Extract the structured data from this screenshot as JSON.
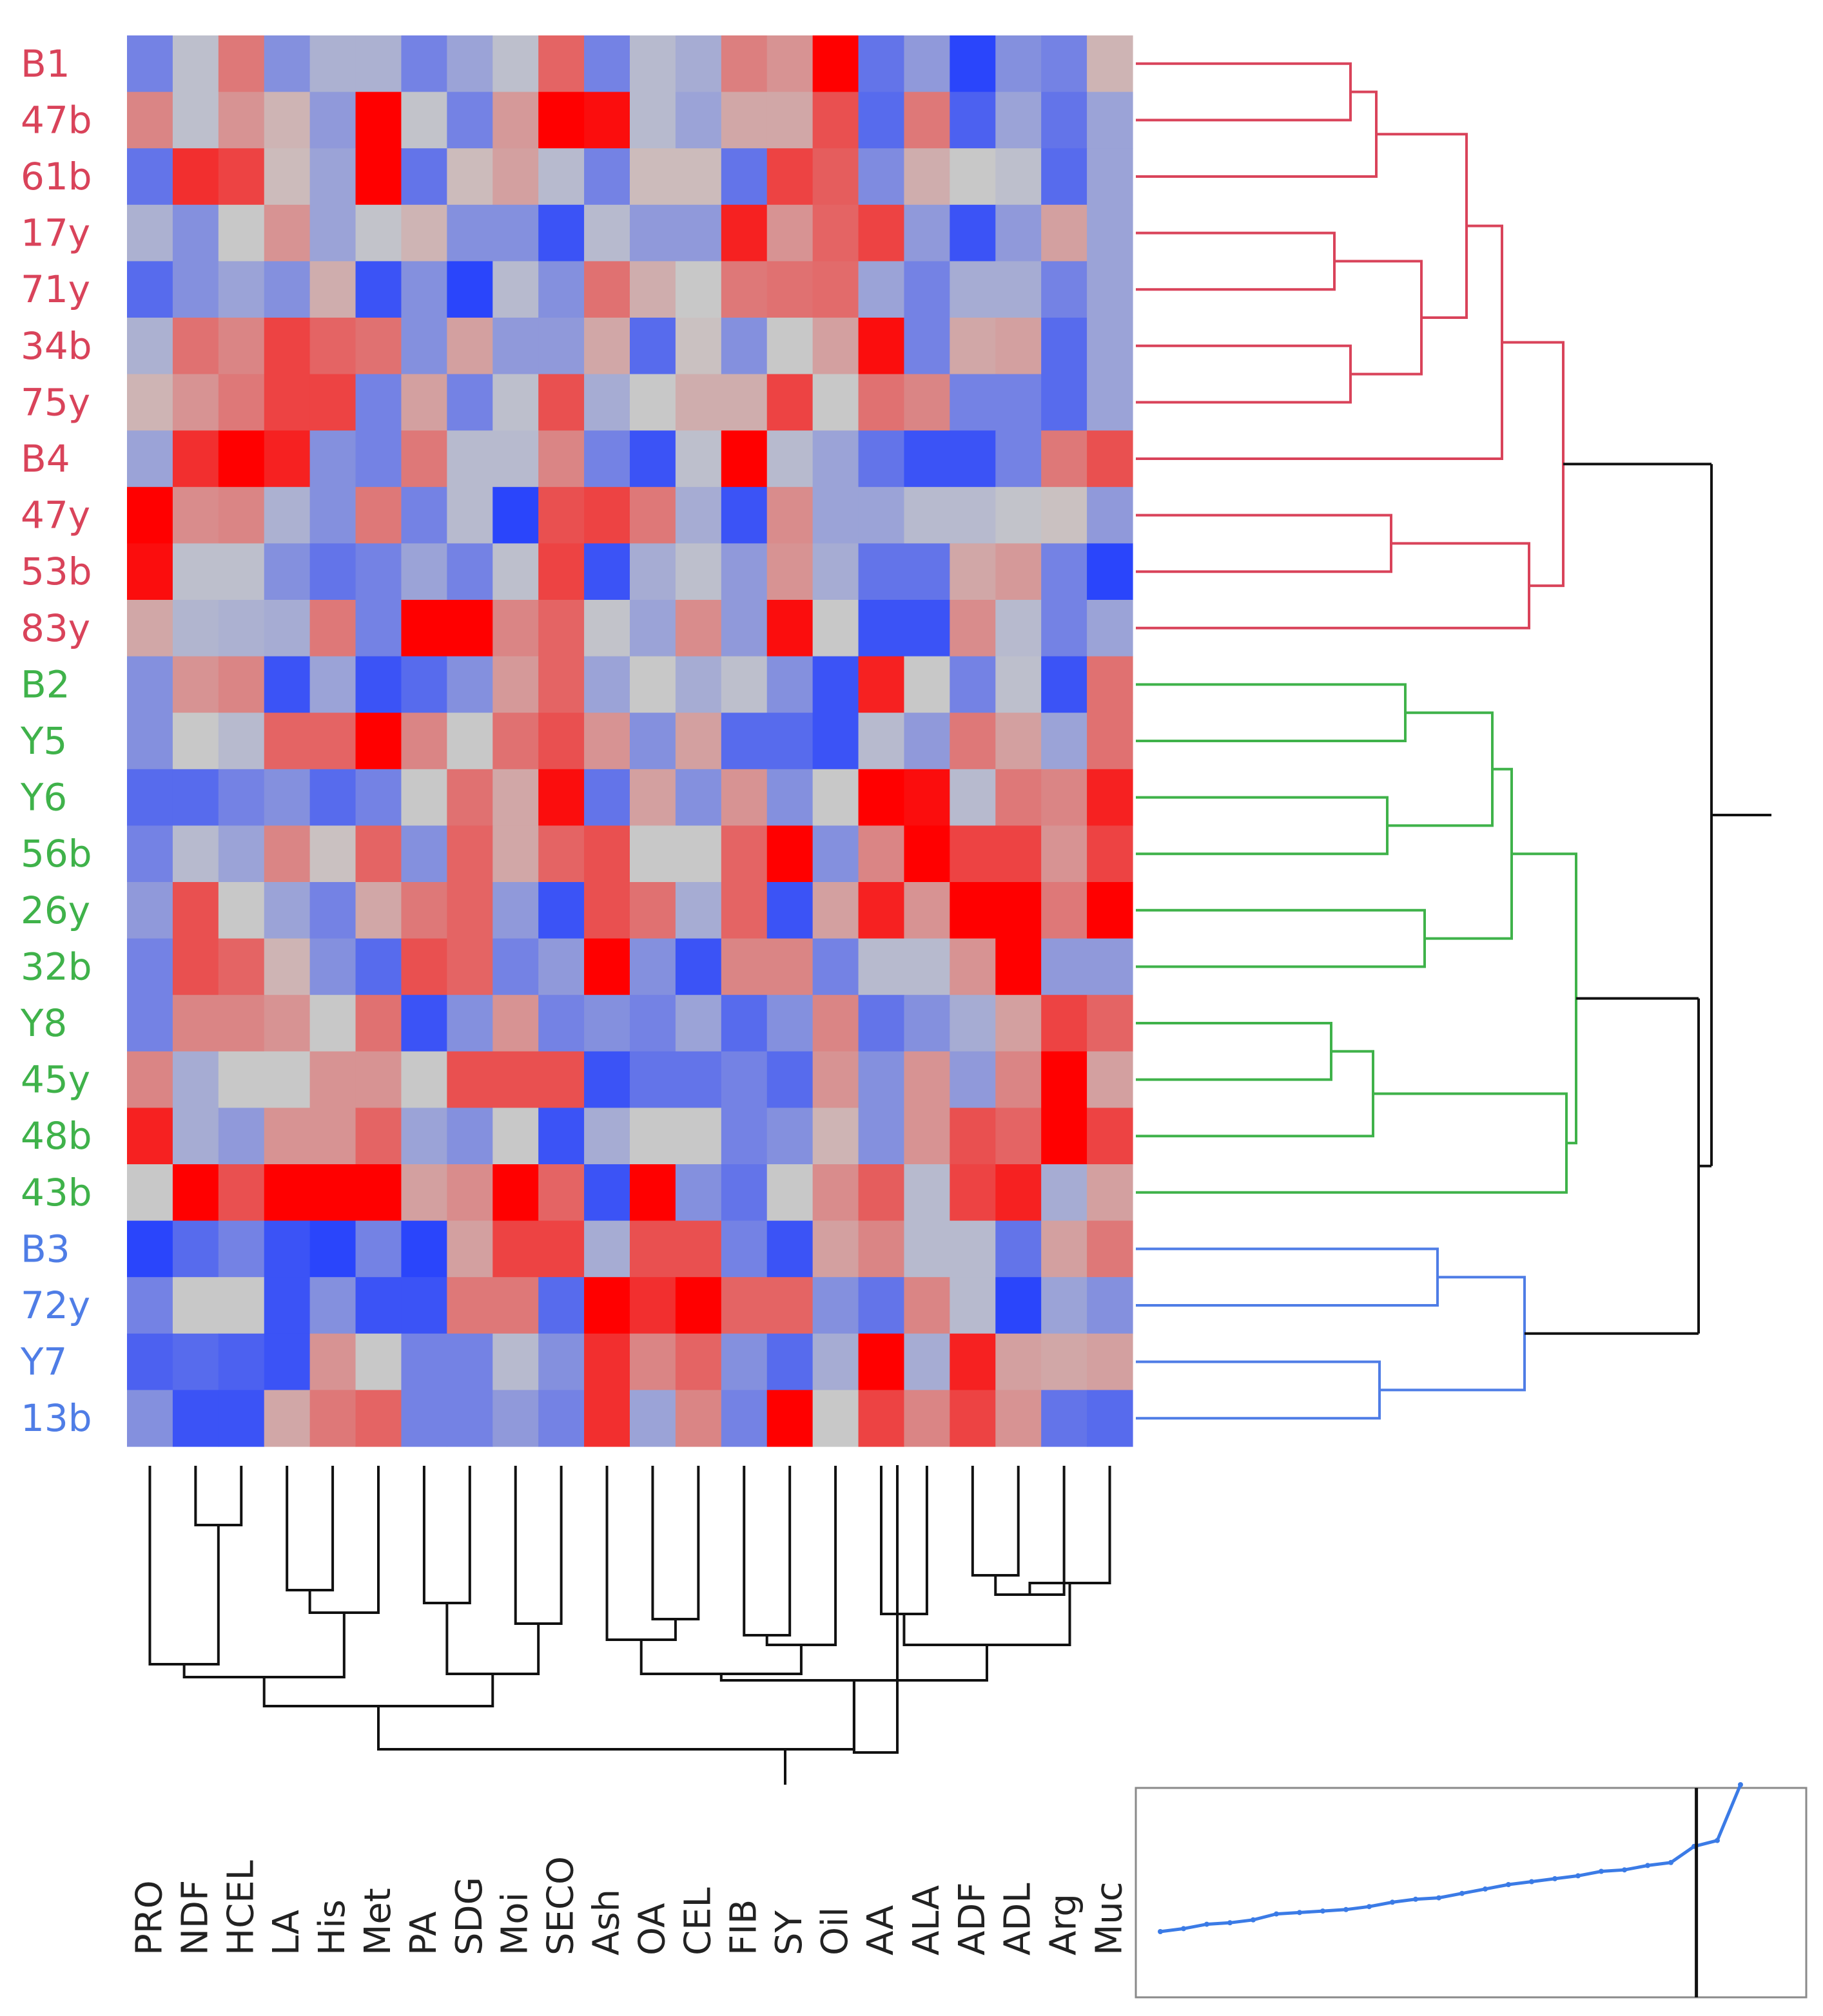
{
  "chart_data": {
    "type": "heatmap",
    "title": "",
    "xlabel": "",
    "ylabel": "",
    "rows": [
      "B1",
      "47b",
      "61b",
      "17y",
      "71y",
      "34b",
      "75y",
      "B4",
      "47y",
      "53b",
      "83y",
      "B2",
      "Y5",
      "Y6",
      "56b",
      "26y",
      "32b",
      "Y8",
      "45y",
      "48b",
      "43b",
      "B3",
      "72y",
      "Y7",
      "13b"
    ],
    "columns": [
      "PRO",
      "NDF",
      "HCEL",
      "LA",
      "His",
      "Met",
      "PA",
      "SDG",
      "Moi",
      "SECO",
      "Ash",
      "OA",
      "CEL",
      "FIB",
      "SY",
      "Oil",
      "AA",
      "ALA",
      "ADF",
      "ADL",
      "Arg",
      "Muc"
    ],
    "row_clusters": [
      {
        "name": "cluster-1",
        "color": "#d9435a",
        "rows": [
          "B1",
          "47b",
          "61b",
          "17y",
          "71y",
          "34b",
          "75y",
          "B4",
          "47y",
          "53b",
          "83y"
        ]
      },
      {
        "name": "cluster-2",
        "color": "#3fb24a",
        "rows": [
          "B2",
          "Y5",
          "Y6",
          "56b",
          "26y",
          "32b",
          "Y8",
          "45y",
          "48b",
          "43b"
        ]
      },
      {
        "name": "cluster-3",
        "color": "#4f7de6",
        "rows": [
          "B3",
          "72y",
          "Y7",
          "13b"
        ]
      }
    ],
    "color_scale": {
      "min": -3,
      "mid": 0,
      "max": 3,
      "low_color": "#1f3cff",
      "mid_color": "#c8c8c8",
      "high_color": "#ff0000"
    },
    "values": [
      [
        -1.5,
        -0.2,
        1.2,
        -1.2,
        -0.5,
        -0.5,
        -1.5,
        -0.8,
        -0.2,
        1.5,
        -1.5,
        -0.3,
        -0.6,
        1.1,
        0.8,
        3,
        -1.8,
        -1.0,
        -2.8,
        -1.2,
        -1.5,
        0.3
      ],
      [
        1.0,
        -0.2,
        0.8,
        0.3,
        -1.0,
        3,
        -0.1,
        -1.5,
        0.7,
        3,
        2.8,
        -0.3,
        -0.8,
        0.5,
        0.5,
        1.8,
        -2,
        1.2,
        -2.2,
        -0.8,
        -1.8,
        -0.8
      ],
      [
        -1.8,
        2.3,
        2,
        0.2,
        -0.8,
        3,
        -1.8,
        0.2,
        0.6,
        -0.3,
        -1.5,
        0.2,
        0.2,
        -1.8,
        2,
        1.6,
        -1.3,
        0.4,
        0.0,
        -0.2,
        -2,
        -0.8
      ],
      [
        -0.5,
        -1.2,
        0.0,
        0.8,
        -0.8,
        -0.1,
        0.3,
        -1.2,
        -1.2,
        -2.5,
        -0.3,
        -1.0,
        -1.0,
        2.5,
        0.8,
        1.5,
        2.0,
        -1.0,
        -2.5,
        -1.0,
        0.6,
        -0.8
      ],
      [
        -2.0,
        -1.2,
        -0.8,
        -1.2,
        0.4,
        -2.5,
        -1.2,
        -2.8,
        -0.3,
        -1.2,
        1.3,
        0.4,
        0.0,
        1.2,
        1.3,
        1.4,
        -0.8,
        -1.5,
        -0.6,
        -0.6,
        -1.5,
        -0.8
      ],
      [
        -0.5,
        1.3,
        1.0,
        2.0,
        1.5,
        1.3,
        -1.2,
        0.6,
        -1.0,
        -1.0,
        0.5,
        -2.0,
        0.1,
        -1.2,
        0.0,
        0.6,
        2.8,
        -1.5,
        0.5,
        0.6,
        -2.0,
        -0.8
      ],
      [
        0.3,
        0.8,
        1.2,
        2.0,
        2.0,
        -1.5,
        0.6,
        -1.5,
        -0.2,
        1.8,
        -0.6,
        0.0,
        0.4,
        0.4,
        2.0,
        0.0,
        1.3,
        1.0,
        -1.5,
        -1.5,
        -2.0,
        -0.8
      ],
      [
        -0.8,
        2.3,
        3,
        2.5,
        -1.2,
        -1.5,
        1.2,
        -0.3,
        -0.3,
        1.0,
        -1.5,
        -2.5,
        -0.2,
        3,
        -0.3,
        -0.8,
        -1.8,
        -2.5,
        -2.5,
        -1.5,
        1.2,
        1.8
      ],
      [
        3,
        0.9,
        1.0,
        -0.5,
        -1.2,
        1.2,
        -1.5,
        -0.3,
        -2.8,
        1.8,
        2.0,
        1.2,
        -0.6,
        -2.5,
        0.9,
        -0.8,
        -0.8,
        -0.3,
        -0.3,
        -0.1,
        0.1,
        -1.0
      ],
      [
        2.8,
        -0.2,
        -0.2,
        -1.2,
        -1.8,
        -1.5,
        -0.8,
        -1.5,
        -0.2,
        2.0,
        -2.5,
        -0.6,
        -0.2,
        -1.0,
        0.8,
        -0.6,
        -1.8,
        -1.8,
        0.5,
        0.7,
        -1.5,
        -2.8
      ],
      [
        0.5,
        -0.4,
        -0.5,
        -0.6,
        1.2,
        -1.5,
        3,
        3,
        1.0,
        1.5,
        -0.1,
        -0.8,
        0.9,
        -1.0,
        2.8,
        0.0,
        -2.5,
        -2.5,
        0.9,
        -0.3,
        -1.5,
        -0.8
      ],
      [
        -1.2,
        0.8,
        1.0,
        -2.5,
        -0.8,
        -2.5,
        -2.0,
        -1.2,
        0.7,
        1.5,
        -0.8,
        0.0,
        -0.6,
        -0.2,
        -1.2,
        -2.5,
        2.5,
        0.0,
        -1.5,
        -0.2,
        -2.5,
        1.3
      ],
      [
        -1.2,
        0.0,
        -0.3,
        1.5,
        1.5,
        3,
        1.0,
        0.0,
        1.3,
        1.8,
        0.8,
        -1.2,
        0.6,
        -2.0,
        -2.0,
        -2.5,
        -0.3,
        -1.0,
        1.2,
        0.6,
        -0.8,
        1.3
      ],
      [
        -2.0,
        -2.0,
        -1.5,
        -1.2,
        -2.0,
        -1.5,
        0.0,
        1.3,
        0.5,
        2.8,
        -1.8,
        0.6,
        -1.2,
        0.8,
        -1.2,
        0.0,
        3,
        2.8,
        -0.3,
        1.2,
        1.0,
        2.5
      ],
      [
        -1.5,
        -0.3,
        -0.8,
        1.0,
        0.1,
        1.5,
        -1.2,
        1.5,
        0.5,
        1.5,
        1.8,
        0.0,
        0.0,
        1.5,
        3,
        -1.2,
        1.0,
        3,
        2.0,
        2.0,
        0.8,
        2.0
      ],
      [
        -1.0,
        1.8,
        0.0,
        -0.8,
        -1.5,
        0.5,
        1.2,
        1.5,
        -1.0,
        -2.5,
        1.8,
        1.3,
        -0.6,
        1.5,
        -2.5,
        0.6,
        2.5,
        0.8,
        3,
        3,
        1.2,
        3
      ],
      [
        -1.5,
        1.8,
        1.5,
        0.3,
        -1.2,
        -2.0,
        1.8,
        1.5,
        -1.5,
        -1.0,
        3,
        -1.2,
        -2.5,
        1.0,
        1.0,
        -1.5,
        -0.3,
        -0.3,
        0.8,
        3,
        -1.0,
        -1.0
      ],
      [
        -1.5,
        1.0,
        1.0,
        0.8,
        0.0,
        1.3,
        -2.5,
        -1.2,
        0.8,
        -1.5,
        -1.2,
        -1.5,
        -0.8,
        -2.0,
        -1.2,
        1.0,
        -1.8,
        -1.2,
        -0.6,
        0.6,
        2.0,
        1.5
      ],
      [
        1.0,
        -0.6,
        0.0,
        0.0,
        0.8,
        0.8,
        0.0,
        1.8,
        1.8,
        1.8,
        -2.5,
        -1.8,
        -1.8,
        -1.5,
        -2.0,
        0.8,
        -1.2,
        0.8,
        -1.0,
        1.0,
        3,
        0.6
      ],
      [
        2.5,
        -0.6,
        -1.0,
        0.8,
        0.8,
        1.5,
        -0.8,
        -1.2,
        0.0,
        -2.5,
        -0.6,
        0.0,
        0.0,
        -1.5,
        -1.2,
        0.3,
        -1.2,
        0.8,
        1.8,
        1.5,
        3,
        2.0
      ],
      [
        0.0,
        3,
        1.8,
        3,
        3,
        3,
        0.6,
        0.9,
        3,
        1.5,
        -2.5,
        3,
        -1.2,
        -1.8,
        0.0,
        0.9,
        1.6,
        -0.3,
        2.0,
        2.5,
        -0.6,
        0.6
      ],
      [
        -2.8,
        -2.0,
        -1.5,
        -2.5,
        -2.8,
        -1.5,
        -2.8,
        0.6,
        2.0,
        2.0,
        -0.6,
        1.8,
        1.8,
        -1.5,
        -2.5,
        0.6,
        1.0,
        -0.3,
        -0.3,
        -1.8,
        0.6,
        1.2
      ],
      [
        -1.5,
        0.0,
        0.0,
        -2.5,
        -1.2,
        -2.5,
        -2.5,
        1.2,
        1.2,
        -2.0,
        3,
        2.3,
        3,
        1.5,
        1.5,
        -1.2,
        -1.8,
        1.0,
        -0.3,
        -2.8,
        -0.8,
        -1.2
      ],
      [
        -2.2,
        -2.0,
        -2.2,
        -2.5,
        0.8,
        0.0,
        -1.5,
        -1.5,
        -0.3,
        -1.2,
        2.3,
        1.0,
        1.5,
        -1.2,
        -2.0,
        -0.6,
        3,
        -0.6,
        2.5,
        0.6,
        0.5,
        0.6
      ],
      [
        -1.2,
        -2.5,
        -2.5,
        0.5,
        1.2,
        1.5,
        -1.5,
        -1.5,
        -1.0,
        -1.5,
        2.3,
        -0.8,
        1.0,
        -1.5,
        3,
        0.0,
        2.0,
        1.0,
        2.0,
        0.8,
        -1.8,
        -2.0
      ]
    ],
    "inset": {
      "type": "line",
      "xlabel": "",
      "ylabel": "",
      "values": [
        0.0,
        0.02,
        0.05,
        0.06,
        0.08,
        0.12,
        0.13,
        0.14,
        0.15,
        0.17,
        0.2,
        0.22,
        0.23,
        0.26,
        0.29,
        0.32,
        0.34,
        0.36,
        0.38,
        0.41,
        0.42,
        0.45,
        0.47,
        0.58,
        0.62,
        1.0
      ],
      "cut_index": 23.1
    }
  }
}
